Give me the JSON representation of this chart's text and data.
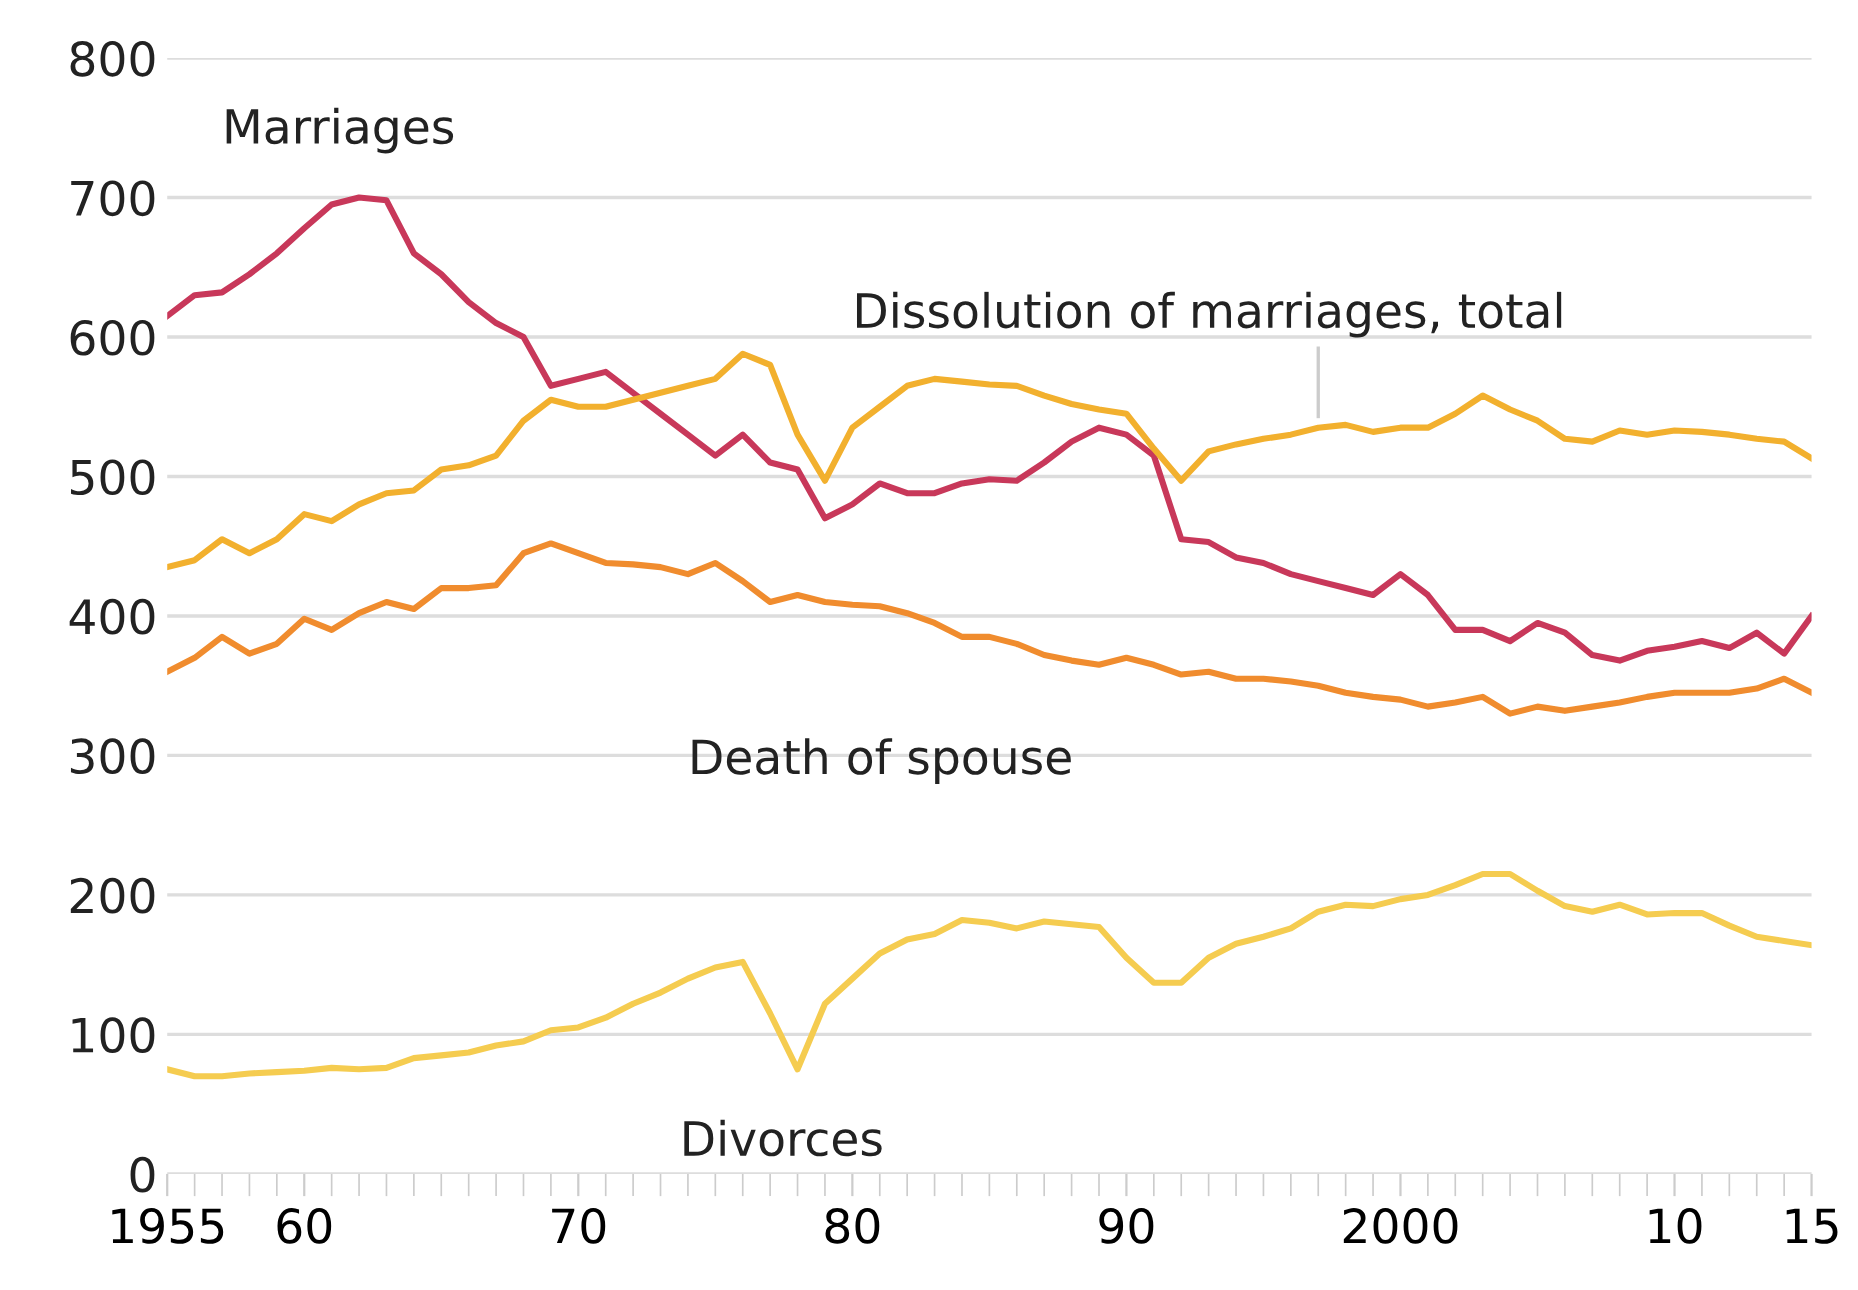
{
  "chart_data": {
    "type": "line",
    "x": [
      1955,
      1956,
      1957,
      1958,
      1959,
      1960,
      1961,
      1962,
      1963,
      1964,
      1965,
      1966,
      1967,
      1968,
      1969,
      1970,
      1971,
      1972,
      1973,
      1974,
      1975,
      1976,
      1977,
      1978,
      1979,
      1980,
      1981,
      1982,
      1983,
      1984,
      1985,
      1986,
      1987,
      1988,
      1989,
      1990,
      1991,
      1992,
      1993,
      1994,
      1995,
      1996,
      1997,
      1998,
      1999,
      2000,
      2001,
      2002,
      2003,
      2004,
      2005,
      2006,
      2007,
      2008,
      2009,
      2010,
      2011,
      2012,
      2013,
      2014,
      2015
    ],
    "series": [
      {
        "name": "Marriages",
        "color": "#c8385a",
        "values": [
          615,
          630,
          632,
          645,
          660,
          678,
          695,
          700,
          698,
          660,
          645,
          625,
          610,
          600,
          565,
          570,
          575,
          560,
          545,
          530,
          515,
          530,
          510,
          505,
          470,
          480,
          495,
          488,
          488,
          495,
          498,
          497,
          510,
          525,
          535,
          530,
          515,
          455,
          453,
          442,
          438,
          430,
          425,
          420,
          415,
          430,
          415,
          390,
          390,
          382,
          395,
          388,
          372,
          368,
          375,
          378,
          382,
          377,
          388,
          373,
          400
        ]
      },
      {
        "name": "Dissolution of marriages, total",
        "color": "#f2b02e",
        "values": [
          435,
          440,
          455,
          445,
          455,
          473,
          468,
          480,
          488,
          490,
          505,
          508,
          515,
          540,
          555,
          550,
          550,
          555,
          560,
          565,
          570,
          588,
          580,
          530,
          497,
          535,
          550,
          565,
          570,
          568,
          566,
          565,
          558,
          552,
          548,
          545,
          520,
          497,
          518,
          523,
          527,
          530,
          535,
          537,
          532,
          535,
          535,
          545,
          558,
          548,
          540,
          527,
          525,
          533,
          530,
          533,
          532,
          530,
          527,
          525,
          513
        ]
      },
      {
        "name": "Death of spouse",
        "color": "#f08c2e",
        "values": [
          360,
          370,
          385,
          373,
          380,
          398,
          390,
          402,
          410,
          405,
          420,
          420,
          422,
          445,
          452,
          445,
          438,
          437,
          435,
          430,
          438,
          425,
          410,
          415,
          410,
          408,
          407,
          402,
          395,
          385,
          385,
          380,
          372,
          368,
          365,
          370,
          365,
          358,
          360,
          355,
          355,
          353,
          350,
          345,
          342,
          340,
          335,
          338,
          342,
          330,
          335,
          332,
          335,
          338,
          342,
          345,
          345,
          345,
          348,
          355,
          345
        ]
      },
      {
        "name": "Divorces",
        "color": "#f5cc50",
        "values": [
          75,
          70,
          70,
          72,
          73,
          74,
          76,
          75,
          76,
          83,
          85,
          87,
          92,
          95,
          103,
          105,
          112,
          122,
          130,
          140,
          148,
          152,
          115,
          75,
          122,
          140,
          158,
          168,
          172,
          182,
          180,
          176,
          181,
          179,
          177,
          155,
          137,
          137,
          155,
          165,
          170,
          176,
          188,
          193,
          192,
          197,
          200,
          207,
          215,
          215,
          203,
          192,
          188,
          193,
          186,
          187,
          187,
          178,
          170,
          167,
          164
        ]
      }
    ],
    "xlim": [
      1955,
      2015
    ],
    "xticks": [
      1955,
      {
        "value": 1960,
        "label": "60"
      },
      {
        "value": 1970,
        "label": "70"
      },
      {
        "value": 1980,
        "label": "80"
      },
      {
        "value": 1990,
        "label": "90"
      },
      2000,
      {
        "value": 2010,
        "label": "10"
      },
      {
        "value": 2015,
        "label": "15"
      }
    ],
    "ylim": [
      0,
      800
    ],
    "yticks": [
      0,
      100,
      200,
      300,
      400,
      500,
      600,
      700,
      800
    ],
    "grid": "y",
    "marker": "none",
    "line_style": "solid",
    "legend": false
  }
}
